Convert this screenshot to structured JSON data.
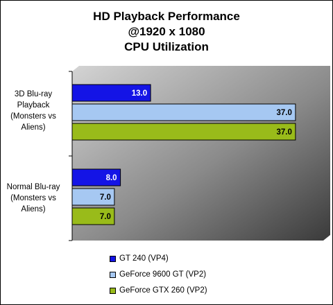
{
  "chart_data": {
    "type": "bar",
    "orientation": "horizontal",
    "title": [
      "HD Playback Performance",
      "@1920 x 1080",
      "CPU Utilization"
    ],
    "categories": [
      "3D Blu-ray\nPlayback\n(Monsters vs\nAliens)",
      "Normal Blu-ray\n(Monsters vs\nAliens)"
    ],
    "series": [
      {
        "name": "GT 240 (VP4)",
        "color": "#1414e6",
        "values": [
          13.0,
          8.0
        ],
        "labels": [
          "13.0",
          "8.0"
        ]
      },
      {
        "name": "GeForce 9600 GT (VP2)",
        "color": "#a6c8f2",
        "values": [
          37.0,
          7.0
        ],
        "labels": [
          "37.0",
          "7.0"
        ]
      },
      {
        "name": "GeForce GTX 260 (VP2)",
        "color": "#99bb1a",
        "values": [
          37.0,
          7.0
        ],
        "labels": [
          "37.0",
          "7.0"
        ]
      }
    ],
    "xlim": [
      0,
      40
    ],
    "grid": false,
    "legend_position": "bottom"
  }
}
